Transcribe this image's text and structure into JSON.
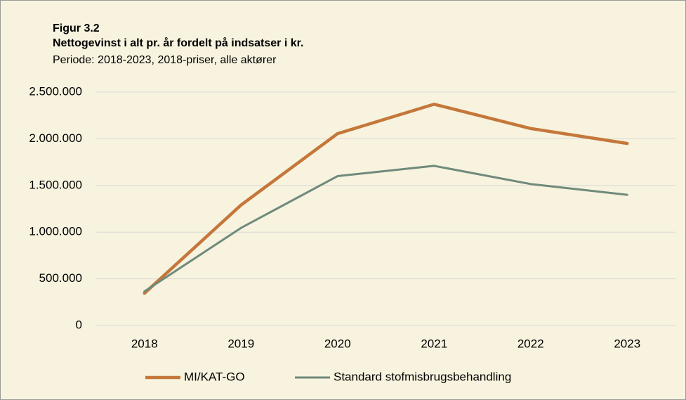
{
  "chart_data": {
    "type": "line",
    "title": "Figur 3.2",
    "subtitle": "Nettogevinst i alt pr. år fordelt på indsatser i kr.",
    "caption": "Periode: 2018-2023, 2018-priser, alle aktører",
    "categories": [
      "2018",
      "2019",
      "2020",
      "2021",
      "2022",
      "2023"
    ],
    "series": [
      {
        "name": "MI/KAT-GO",
        "color": "#c5773a",
        "values": [
          345000,
          1290000,
          2055000,
          2370000,
          2110000,
          1950000
        ]
      },
      {
        "name": "Standard stofmisbrugsbehandling",
        "color": "#6f8a7b",
        "values": [
          365000,
          1045000,
          1600000,
          1710000,
          1515000,
          1400000
        ]
      }
    ],
    "ylim": [
      0,
      2500000
    ],
    "yticks": [
      0,
      {
        "value": 500000,
        "label": "500.000"
      },
      {
        "value": 1000000,
        "label": "1.000.000"
      },
      {
        "value": 1500000,
        "label": "1.500.000"
      },
      {
        "value": 2000000,
        "label": "2.000.000"
      },
      {
        "value": 2500000,
        "label": "2.500.000"
      }
    ],
    "grid": true,
    "legend": "bottom"
  }
}
